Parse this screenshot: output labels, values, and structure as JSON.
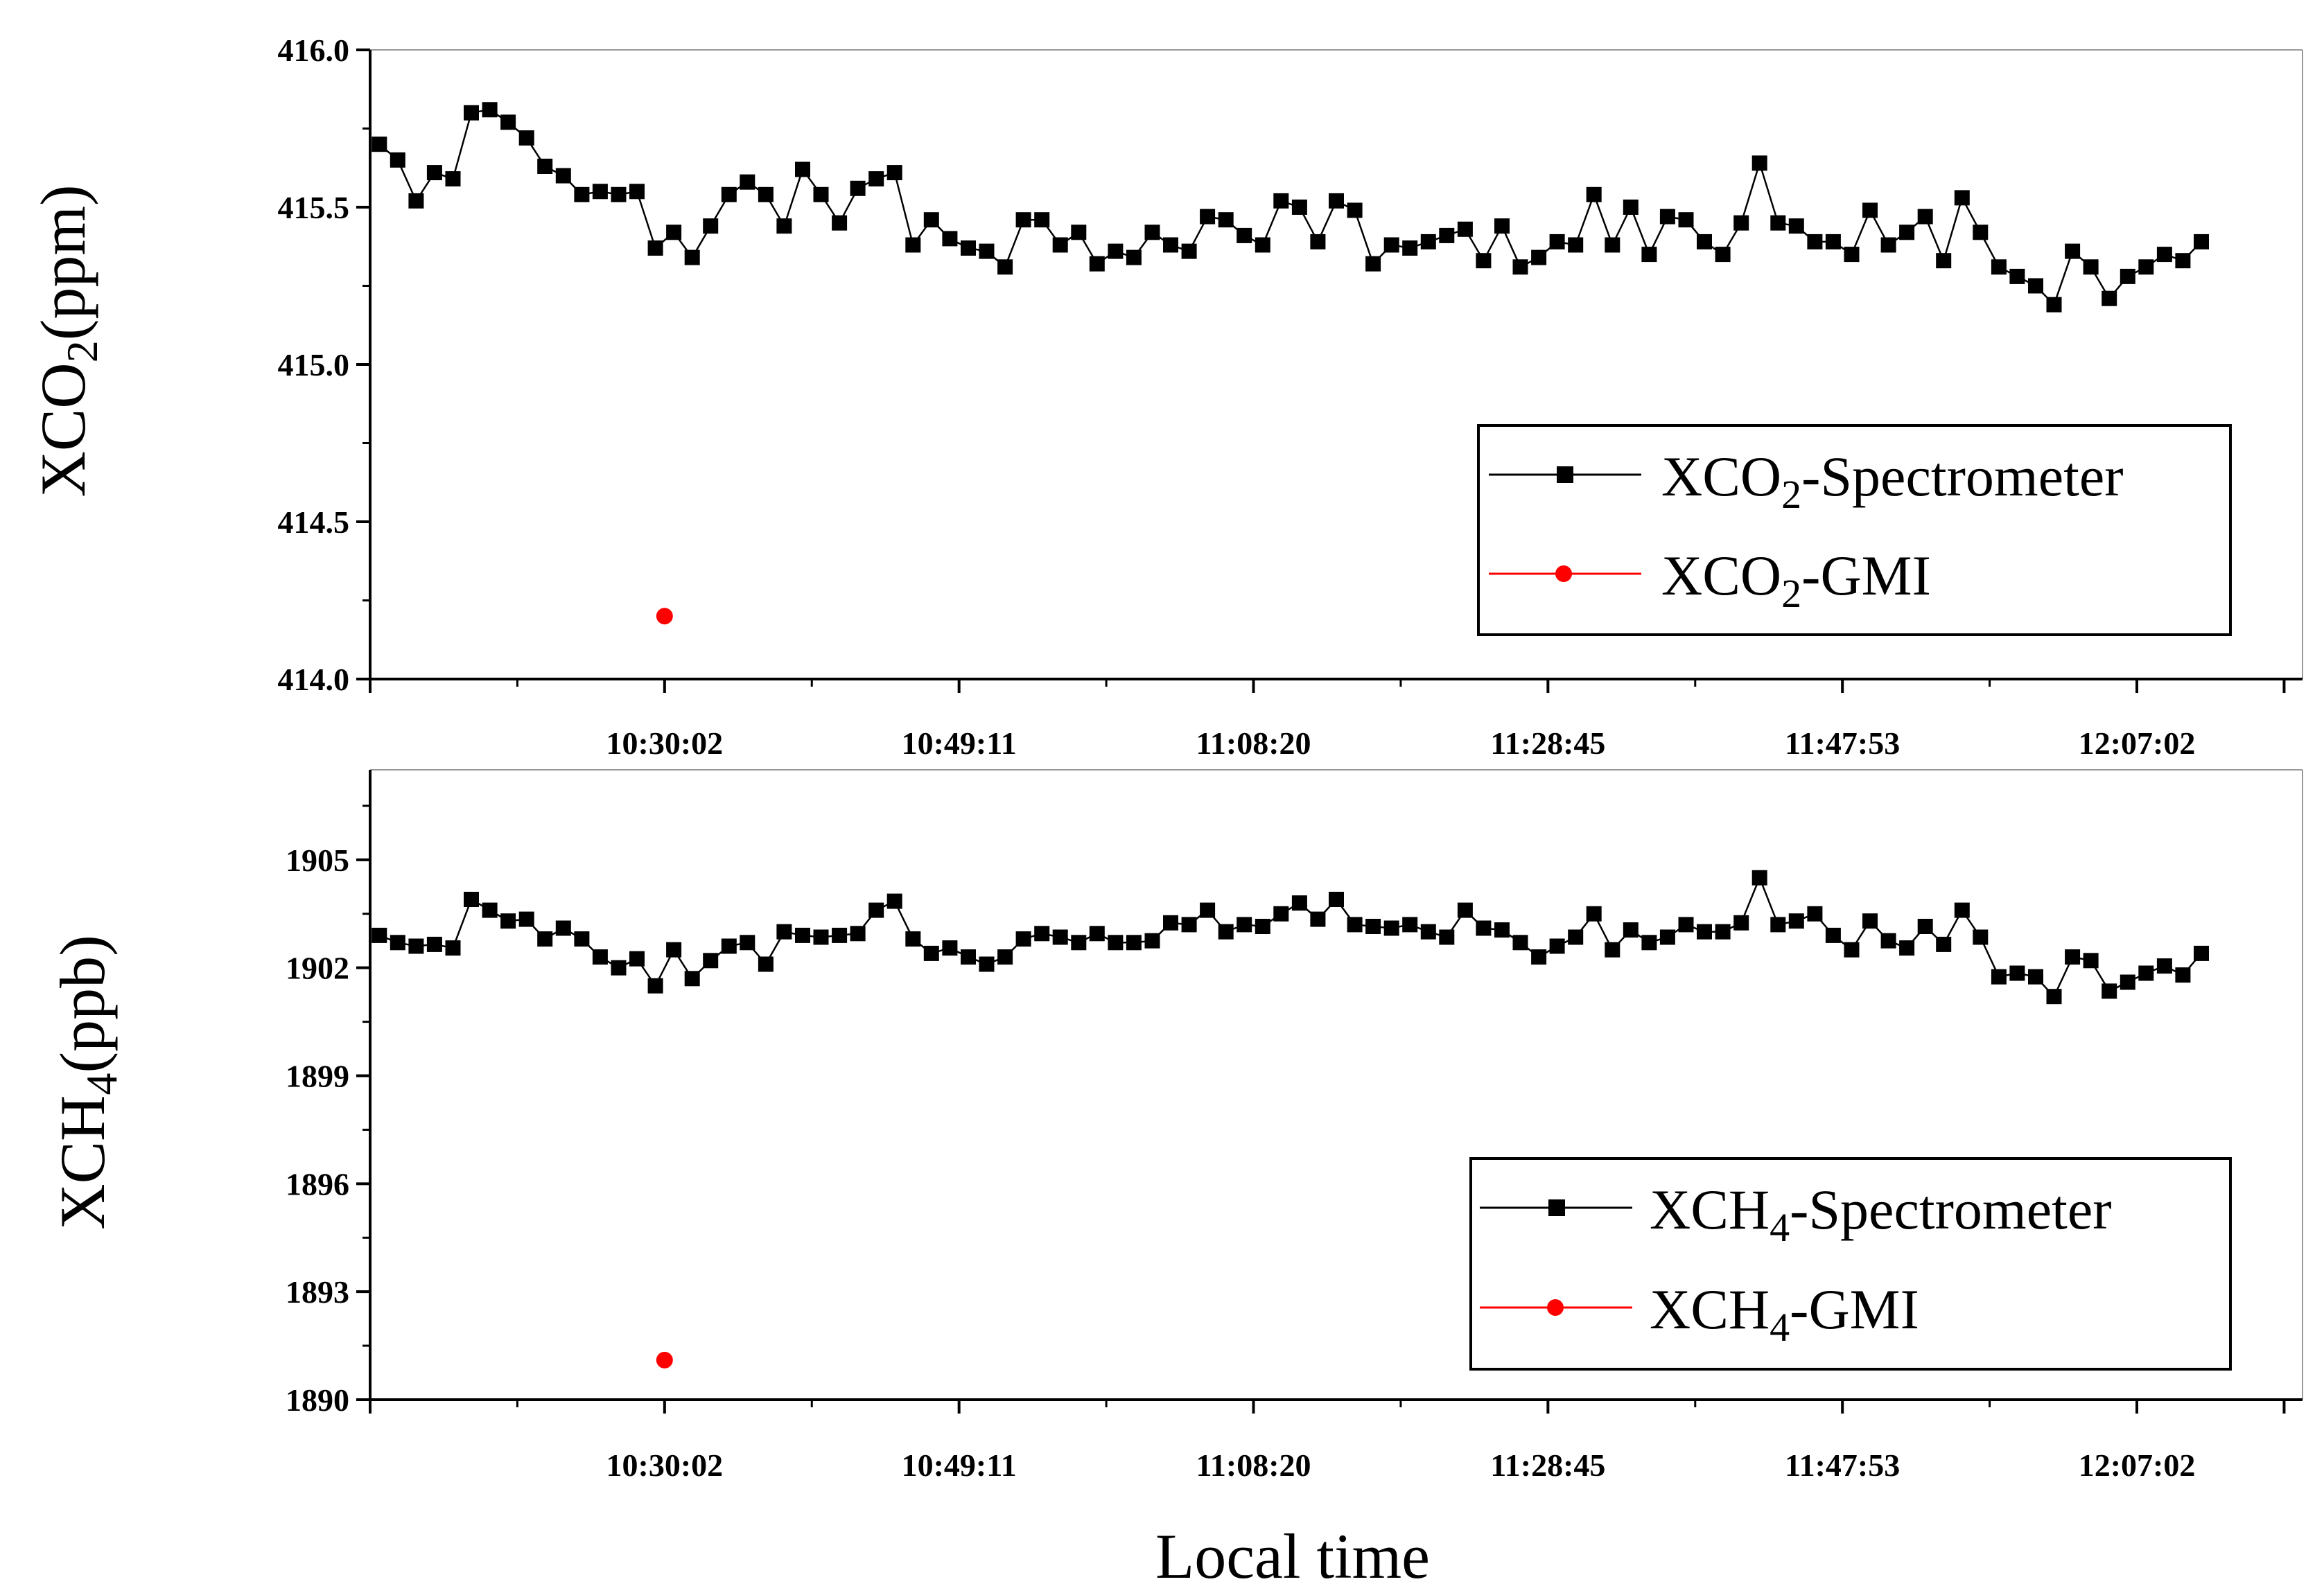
{
  "chart_data": [
    {
      "type": "line",
      "ylabel": "XCO2(ppm)",
      "ylabel_main": "XCO",
      "ylabel_sub": "2",
      "ylabel_tail": "(ppm)",
      "ylim": [
        414.0,
        416.0
      ],
      "y_ticks": [
        414.0,
        414.5,
        415.0,
        415.5,
        416.0
      ],
      "y_tick_labels": [
        "414.0",
        "414.5",
        "415.0",
        "415.5",
        "416.0"
      ],
      "x_range": [
        0,
        105
      ],
      "x_major_ticks": [
        0,
        16,
        32,
        48,
        64,
        80,
        96,
        104
      ],
      "x_tick_labels": [
        {
          "i": 16,
          "label": "10:30:02"
        },
        {
          "i": 32,
          "label": "10:49:11"
        },
        {
          "i": 48,
          "label": "11:08:20"
        },
        {
          "i": 64,
          "label": "11:28:45"
        },
        {
          "i": 80,
          "label": "11:47:53"
        },
        {
          "i": 96,
          "label": "12:07:02"
        }
      ],
      "legend_position": "bottom-right",
      "series": [
        {
          "name": "XCO2-Spectrometer",
          "legend_main": "XCO",
          "legend_sub": "2",
          "legend_tail": "-Spectrometer",
          "color": "#000000",
          "marker": "square",
          "x_start": 0.5,
          "x_step": 1.0,
          "values": [
            415.7,
            415.65,
            415.52,
            415.61,
            415.59,
            415.8,
            415.81,
            415.77,
            415.72,
            415.63,
            415.6,
            415.54,
            415.55,
            415.54,
            415.55,
            415.37,
            415.42,
            415.34,
            415.44,
            415.54,
            415.58,
            415.54,
            415.44,
            415.62,
            415.54,
            415.45,
            415.56,
            415.59,
            415.61,
            415.38,
            415.46,
            415.4,
            415.37,
            415.36,
            415.31,
            415.46,
            415.46,
            415.38,
            415.42,
            415.32,
            415.36,
            415.34,
            415.42,
            415.38,
            415.36,
            415.47,
            415.46,
            415.41,
            415.38,
            415.52,
            415.5,
            415.39,
            415.52,
            415.49,
            415.32,
            415.38,
            415.37,
            415.39,
            415.41,
            415.43,
            415.33,
            415.44,
            415.31,
            415.34,
            415.39,
            415.38,
            415.54,
            415.38,
            415.5,
            415.35,
            415.47,
            415.46,
            415.39,
            415.35,
            415.45,
            415.64,
            415.45,
            415.44,
            415.39,
            415.39,
            415.35,
            415.49,
            415.38,
            415.42,
            415.47,
            415.33,
            415.53,
            415.42,
            415.31,
            415.28,
            415.25,
            415.19,
            415.36,
            415.31,
            415.21,
            415.28,
            415.31,
            415.35,
            415.33,
            415.39
          ]
        },
        {
          "name": "XCO2-GMI",
          "legend_main": "XCO",
          "legend_sub": "2",
          "legend_tail": "-GMI",
          "color": "#ff0000",
          "marker": "circle",
          "points": [
            {
              "x": 16,
              "y": 414.2
            }
          ]
        }
      ]
    },
    {
      "type": "line",
      "ylabel": "XCH4(ppb)",
      "ylabel_main": "XCH",
      "ylabel_sub": "4",
      "ylabel_tail": "(ppb)",
      "ylim": [
        1890,
        1907.5
      ],
      "y_ticks": [
        1890,
        1893,
        1896,
        1899,
        1902,
        1905
      ],
      "y_tick_labels": [
        "1890",
        "1893",
        "1896",
        "1899",
        "1902",
        "1905"
      ],
      "x_range": [
        0,
        105
      ],
      "x_major_ticks": [
        0,
        16,
        32,
        48,
        64,
        80,
        96,
        104
      ],
      "x_tick_labels": [
        {
          "i": 16,
          "label": "10:30:02"
        },
        {
          "i": 32,
          "label": "10:49:11"
        },
        {
          "i": 48,
          "label": "11:08:20"
        },
        {
          "i": 64,
          "label": "11:28:45"
        },
        {
          "i": 80,
          "label": "11:47:53"
        },
        {
          "i": 96,
          "label": "12:07:02"
        }
      ],
      "xlabel": "Local time",
      "legend_position": "bottom-right",
      "series": [
        {
          "name": "XCH4-Spectrometer",
          "legend_main": "XCH",
          "legend_sub": "4",
          "legend_tail": "-Spectrometer",
          "color": "#000000",
          "marker": "square",
          "x_start": 0.5,
          "x_step": 1.0,
          "values": [
            1902.9,
            1902.7,
            1902.6,
            1902.65,
            1902.55,
            1903.9,
            1903.6,
            1903.3,
            1903.35,
            1902.8,
            1903.1,
            1902.8,
            1902.3,
            1902.0,
            1902.25,
            1901.5,
            1902.5,
            1901.7,
            1902.2,
            1902.6,
            1902.7,
            1902.1,
            1903.0,
            1902.9,
            1902.85,
            1902.9,
            1902.95,
            1903.6,
            1903.85,
            1902.8,
            1902.4,
            1902.55,
            1902.3,
            1902.1,
            1902.3,
            1902.8,
            1902.95,
            1902.85,
            1902.7,
            1902.95,
            1902.7,
            1902.7,
            1902.75,
            1903.25,
            1903.2,
            1903.6,
            1903.0,
            1903.2,
            1903.15,
            1903.5,
            1903.8,
            1903.35,
            1903.9,
            1903.2,
            1903.15,
            1903.1,
            1903.2,
            1903.0,
            1902.85,
            1903.6,
            1903.1,
            1903.05,
            1902.7,
            1902.3,
            1902.6,
            1902.85,
            1903.5,
            1902.5,
            1903.05,
            1902.7,
            1902.85,
            1903.2,
            1903.0,
            1903.0,
            1903.25,
            1904.5,
            1903.2,
            1903.3,
            1903.5,
            1902.9,
            1902.5,
            1903.3,
            1902.75,
            1902.55,
            1903.15,
            1902.65,
            1903.6,
            1902.85,
            1901.75,
            1901.85,
            1901.75,
            1901.2,
            1902.3,
            1902.2,
            1901.35,
            1901.6,
            1901.85,
            1902.05,
            1901.8,
            1902.4
          ]
        },
        {
          "name": "XCH4-GMI",
          "legend_main": "XCH",
          "legend_sub": "4",
          "legend_tail": "-GMI",
          "color": "#ff0000",
          "marker": "circle",
          "points": [
            {
              "x": 16,
              "y": 1891.1
            }
          ]
        }
      ]
    }
  ]
}
